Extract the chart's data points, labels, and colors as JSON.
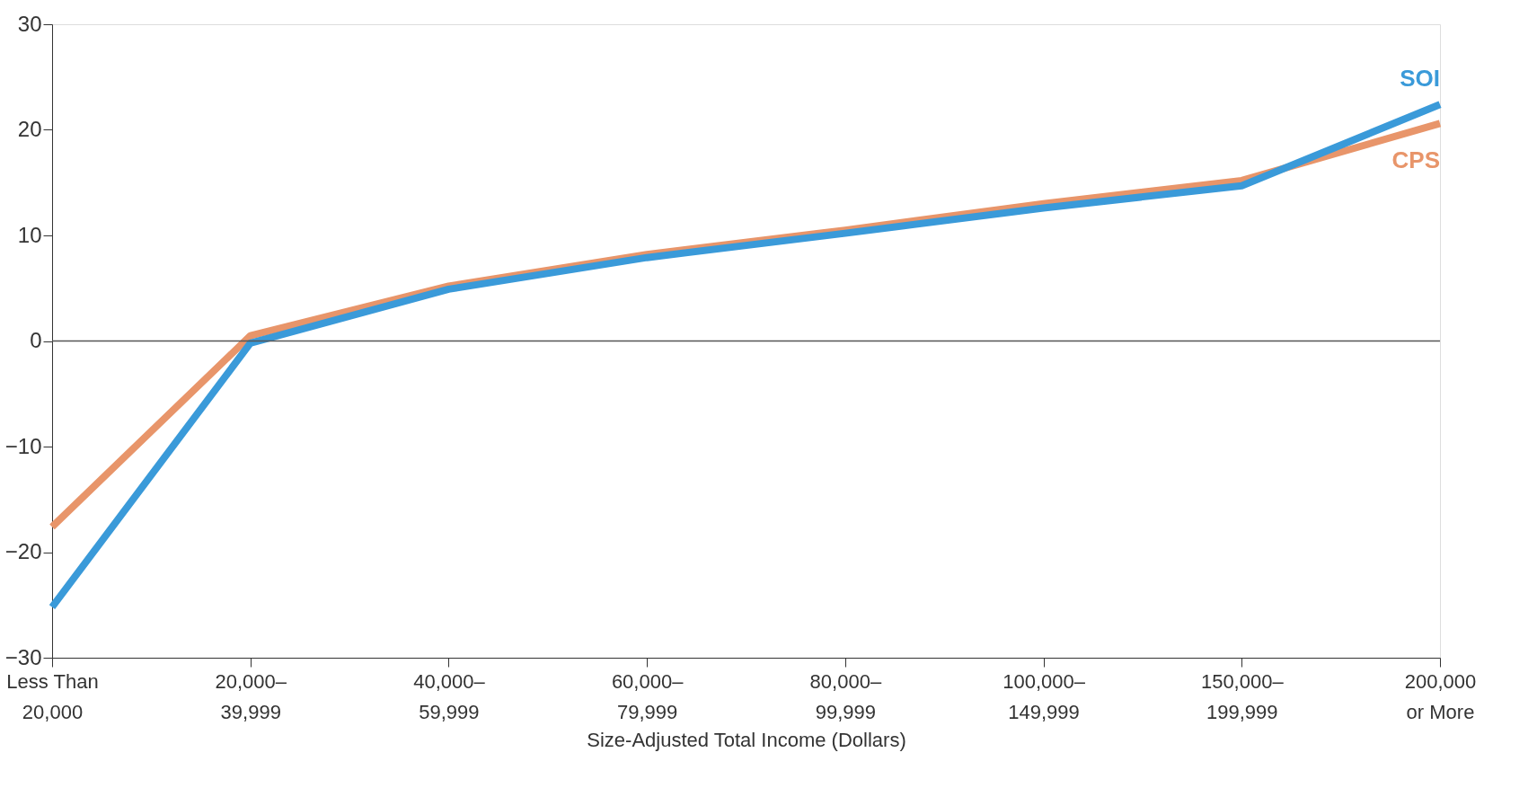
{
  "chart_data": {
    "type": "line",
    "xlabel": "Size-Adjusted Total Income (Dollars)",
    "categories": [
      "Less Than\n20,000",
      "20,000–\n39,999",
      "40,000–\n59,999",
      "60,000–\n79,999",
      "80,000–\n99,999",
      "100,000–\n149,999",
      "150,000–\n199,999",
      "200,000\nor More"
    ],
    "series": [
      {
        "name": "CPS",
        "color": "#e8956a",
        "values": [
          -17.6,
          0.5,
          5.2,
          8.2,
          10.5,
          13.0,
          15.2,
          20.6
        ]
      },
      {
        "name": "SOI",
        "color": "#3a9ad9",
        "values": [
          -25.2,
          -0.2,
          4.9,
          7.9,
          10.2,
          12.6,
          14.7,
          22.4
        ]
      }
    ],
    "ylim": [
      -30,
      30
    ],
    "yticks": [
      -30,
      -20,
      -10,
      0,
      10,
      20,
      30
    ],
    "ref_lines": [
      {
        "axis": "y",
        "value": 0,
        "color": "#555555"
      }
    ],
    "grid": false,
    "legend": false,
    "marker": "none",
    "line_style": "solid"
  }
}
